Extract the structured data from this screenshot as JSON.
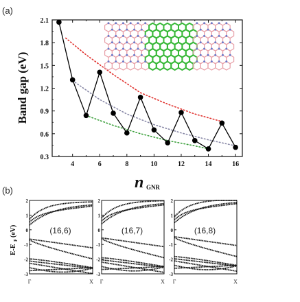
{
  "panel_a": {
    "label": "(a)",
    "chart_data": {
      "type": "line",
      "title": "",
      "xlabel_main": "n",
      "xlabel_sub": "GNR",
      "ylabel": "Band gap (eV)",
      "xlim": [
        2.5,
        16.5
      ],
      "ylim": [
        0.3,
        2.1
      ],
      "xticks": [
        4,
        6,
        8,
        10,
        12,
        14,
        16
      ],
      "yticks": [
        0.3,
        0.6,
        0.9,
        1.2,
        1.5,
        1.8,
        2.1
      ],
      "ytick_labels": [
        "0.3",
        "0.6",
        "0.9",
        "1.2",
        "1.5",
        "1.8",
        "2.1"
      ],
      "x": [
        3,
        4,
        5,
        6,
        7,
        8,
        9,
        10,
        11,
        12,
        13,
        14,
        15,
        16
      ],
      "y": [
        2.07,
        1.31,
        0.84,
        1.41,
        0.87,
        0.61,
        1.08,
        0.65,
        0.48,
        0.88,
        0.51,
        0.4,
        0.74,
        0.42
      ],
      "trend_lines": [
        {
          "color": "#e0302c",
          "x": [
            3.5,
            5,
            7,
            9,
            11,
            13,
            15
          ],
          "y": [
            1.86,
            1.64,
            1.38,
            1.14,
            0.99,
            0.86,
            0.76
          ]
        },
        {
          "color": "#8a8aa8",
          "x": [
            4,
            6,
            8,
            10,
            12,
            14,
            16
          ],
          "y": [
            1.3,
            1.05,
            0.86,
            0.72,
            0.61,
            0.52,
            0.44
          ]
        },
        {
          "color": "#3ca03c",
          "x": [
            5,
            7,
            9,
            11,
            13,
            14
          ],
          "y": [
            0.84,
            0.71,
            0.6,
            0.51,
            0.44,
            0.4
          ]
        }
      ],
      "marker_color": "#000000",
      "line_color": "#000000"
    },
    "inset": {
      "hex_color_outer": "#e8a0a8",
      "atom_color_outer": "#6a78c8",
      "hex_color_center": "#38b838"
    }
  },
  "panel_b": {
    "label": "(b)",
    "ylabel_main": "E-E",
    "ylabel_sub": "F",
    "ylabel_unit": "(eV)",
    "yticks": [
      "2",
      "1",
      "0",
      "-1",
      "-2",
      "-3"
    ],
    "xticks": [
      "Γ",
      "X"
    ],
    "subplots": [
      {
        "label": "(16,6)"
      },
      {
        "label": "(16,7)"
      },
      {
        "label": "(16,8)"
      }
    ]
  }
}
